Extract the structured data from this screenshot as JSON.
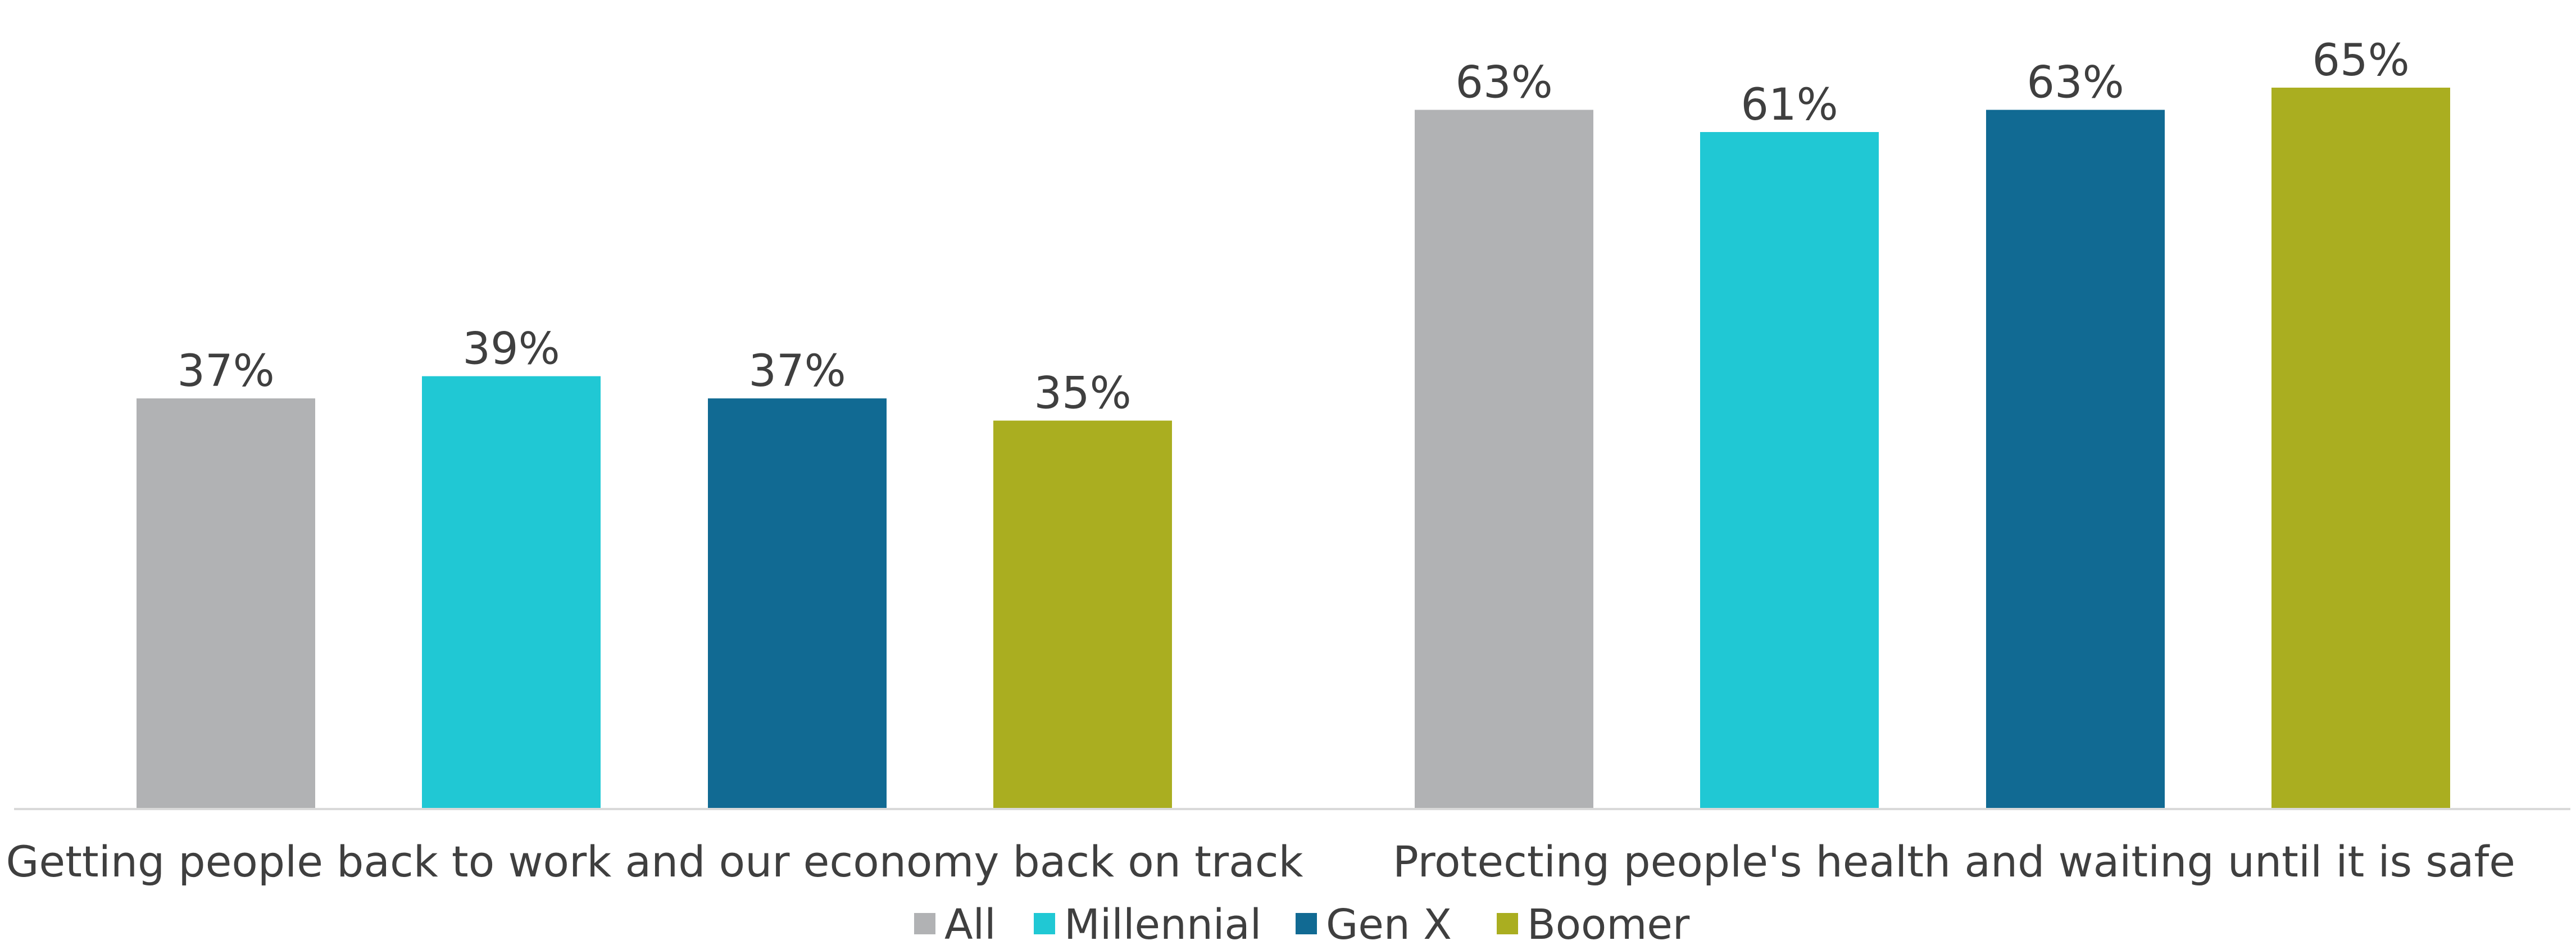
{
  "chart_data": {
    "type": "bar",
    "categories": [
      "Getting people back to work and our economy back on track",
      "Protecting people's health and waiting until it is safe"
    ],
    "series": [
      {
        "name": "All",
        "color": "#b1b2b4",
        "values": [
          37,
          63
        ],
        "labels": [
          "37%",
          "63%"
        ]
      },
      {
        "name": "Millennial",
        "color": "#20c8d4",
        "values": [
          39,
          61
        ],
        "labels": [
          "39%",
          "61%"
        ]
      },
      {
        "name": "Gen X",
        "color": "#116a93",
        "values": [
          37,
          63
        ],
        "labels": [
          "37%",
          "63%"
        ]
      },
      {
        "name": "Boomer",
        "color": "#aaae20",
        "values": [
          35,
          65
        ],
        "labels": [
          "35%",
          "65%"
        ]
      }
    ],
    "ylim": [
      0,
      66
    ],
    "grid": false,
    "legend_position": "bottom"
  }
}
